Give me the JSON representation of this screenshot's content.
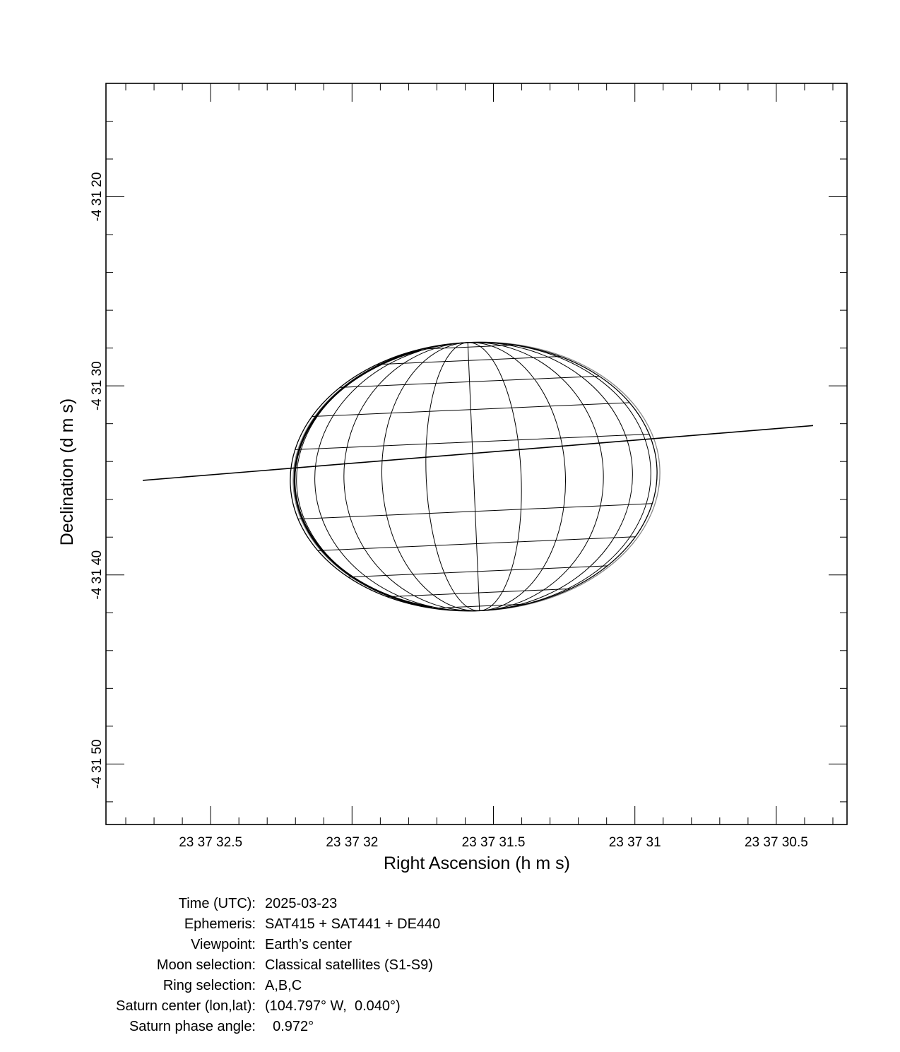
{
  "chart_data": {
    "type": "diagram",
    "xlabel": "Right Ascension (h m s)",
    "ylabel": "Declination (d m s)",
    "x_ticks": [
      "23 37 32.5",
      "23 37 32",
      "23 37 31.5",
      "23 37 31",
      "23 37 30.5"
    ],
    "y_ticks": [
      "-4 31 20",
      "-4 31 30",
      "-4 31 40",
      "-4 31 50"
    ],
    "x_range_seconds": [
      32.87,
      30.25
    ],
    "y_range_arcsec": [
      14,
      53.2
    ],
    "x_major_seconds": [
      32.5,
      32.0,
      31.5,
      31.0,
      30.5
    ],
    "y_major_arcsec": [
      20,
      30,
      40,
      50
    ],
    "planet": {
      "name": "Saturn",
      "center_ra_seconds": 31.57,
      "center_dec_arcsec": 34.8,
      "equatorial_radius_arcsec": 9.7,
      "polar_radius_arcsec": 7.1,
      "tilt_deg": -2.5
    },
    "ring_line": {
      "ra_start_seconds": 32.74,
      "dec_start_arcsec": 35.0,
      "ra_end_seconds": 30.37,
      "dec_end_arcsec": 32.1
    }
  },
  "info": {
    "rows": [
      {
        "key": "Time (UTC):",
        "value": "2025-03-23"
      },
      {
        "key": "Ephemeris:",
        "value": "SAT415 + SAT441 + DE440"
      },
      {
        "key": "Viewpoint:",
        "value": "Earth’s center"
      },
      {
        "key": "Moon selection:",
        "value": "Classical satellites (S1-S9)"
      },
      {
        "key": "Ring selection:",
        "value": "A,B,C"
      },
      {
        "key": "Saturn center (lon,lat):",
        "value": "(104.797° W,  0.040°)"
      },
      {
        "key": "Saturn phase angle:",
        "value": "  0.972°"
      }
    ]
  }
}
